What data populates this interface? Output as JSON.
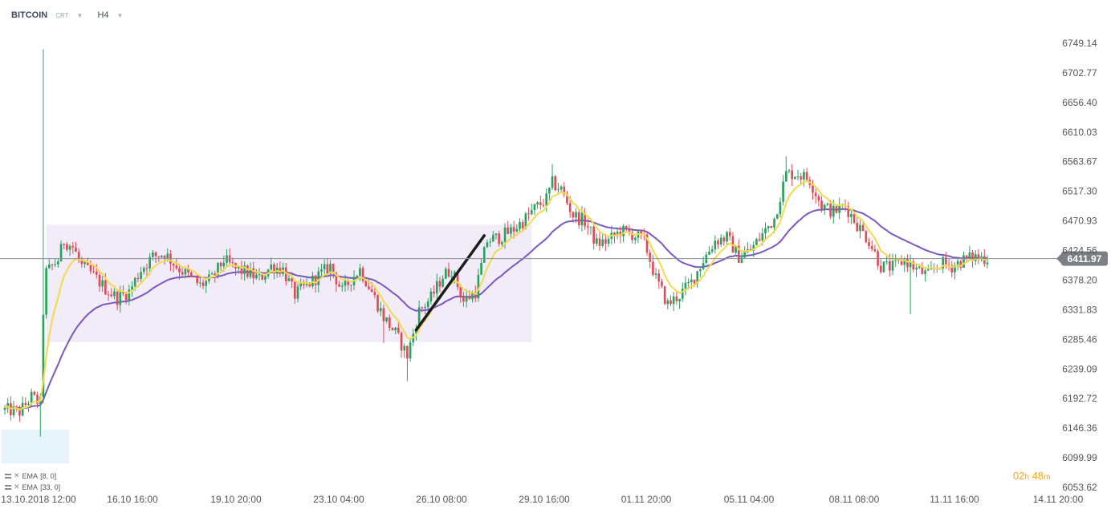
{
  "header": {
    "symbol": "BITCOIN",
    "type": "CRT",
    "timeframe": "H4"
  },
  "indicators": [
    {
      "label": "EMA",
      "params": "[8, 0]",
      "color": "#f2d94e"
    },
    {
      "label": "EMA",
      "params": "[33, 0]",
      "color": "#7b57c2"
    }
  ],
  "timer": {
    "hours": "02",
    "h": "h",
    "minutes": "48",
    "m": "m"
  },
  "chart_data": {
    "type": "candlestick",
    "symbol": "BITCOIN",
    "timeframe": "H4",
    "ylim": [
      6053.62,
      6749.14
    ],
    "y_ticks": [
      "6749.14",
      "6702.77",
      "6656.40",
      "6610.03",
      "6563.67",
      "6517.30",
      "6470.93",
      "6424.56",
      "6378.20",
      "6331.83",
      "6285.46",
      "6239.09",
      "6192.72",
      "6146.36",
      "6099.99",
      "6053.62"
    ],
    "x_ticks": [
      "13.10.2018 12:00",
      "16.10 16:00",
      "19.10 20:00",
      "23.10 04:00",
      "26.10 08:00",
      "29.10 16:00",
      "01.11 20:00",
      "05.11 04:00",
      "08.11 08:00",
      "11.11 16:00",
      "14.11 20:00"
    ],
    "last_price": "6411.97",
    "up_color": "#2aa160",
    "down_color": "#e04b5a",
    "ema_fast_color": "#f2d94e",
    "ema_slow_color": "#7b57c2",
    "range_box": {
      "y_top": 6465,
      "y_bottom": 6281,
      "x_start_index": 14,
      "x_end_index": 178
    },
    "trendline": {
      "from": {
        "index": 139,
        "price": 6300
      },
      "to": {
        "index": 162,
        "price": 6448
      }
    },
    "price_path": [
      [
        0,
        6175
      ],
      [
        5,
        6172
      ],
      [
        9,
        6195
      ],
      [
        12,
        6185
      ],
      [
        13,
        6330
      ],
      [
        14,
        6390
      ],
      [
        16,
        6400
      ],
      [
        18,
        6410
      ],
      [
        20,
        6440
      ],
      [
        23,
        6430
      ],
      [
        26,
        6400
      ],
      [
        30,
        6385
      ],
      [
        34,
        6365
      ],
      [
        38,
        6350
      ],
      [
        42,
        6360
      ],
      [
        46,
        6395
      ],
      [
        50,
        6415
      ],
      [
        54,
        6420
      ],
      [
        58,
        6400
      ],
      [
        62,
        6385
      ],
      [
        66,
        6370
      ],
      [
        70,
        6380
      ],
      [
        74,
        6410
      ],
      [
        78,
        6395
      ],
      [
        82,
        6390
      ],
      [
        86,
        6380
      ],
      [
        90,
        6400
      ],
      [
        94,
        6395
      ],
      [
        98,
        6355
      ],
      [
        102,
        6370
      ],
      [
        106,
        6385
      ],
      [
        110,
        6400
      ],
      [
        114,
        6360
      ],
      [
        117,
        6380
      ],
      [
        120,
        6395
      ],
      [
        124,
        6360
      ],
      [
        128,
        6320
      ],
      [
        132,
        6295
      ],
      [
        136,
        6260
      ],
      [
        140,
        6330
      ],
      [
        144,
        6350
      ],
      [
        148,
        6385
      ],
      [
        151,
        6395
      ],
      [
        155,
        6345
      ],
      [
        159,
        6360
      ],
      [
        163,
        6440
      ],
      [
        167,
        6445
      ],
      [
        171,
        6455
      ],
      [
        175,
        6470
      ],
      [
        179,
        6490
      ],
      [
        183,
        6505
      ],
      [
        185,
        6530
      ],
      [
        188,
        6520
      ],
      [
        192,
        6480
      ],
      [
        196,
        6470
      ],
      [
        200,
        6435
      ],
      [
        204,
        6440
      ],
      [
        208,
        6455
      ],
      [
        212,
        6450
      ],
      [
        216,
        6440
      ],
      [
        220,
        6380
      ],
      [
        224,
        6340
      ],
      [
        228,
        6355
      ],
      [
        232,
        6375
      ],
      [
        236,
        6410
      ],
      [
        240,
        6440
      ],
      [
        244,
        6445
      ],
      [
        248,
        6415
      ],
      [
        252,
        6425
      ],
      [
        256,
        6450
      ],
      [
        260,
        6475
      ],
      [
        264,
        6545
      ],
      [
        268,
        6545
      ],
      [
        272,
        6535
      ],
      [
        276,
        6495
      ],
      [
        280,
        6485
      ],
      [
        284,
        6495
      ],
      [
        288,
        6465
      ],
      [
        292,
        6440
      ],
      [
        296,
        6400
      ],
      [
        300,
        6398
      ],
      [
        304,
        6410
      ],
      [
        308,
        6395
      ],
      [
        312,
        6385
      ],
      [
        316,
        6405
      ],
      [
        320,
        6400
      ],
      [
        324,
        6410
      ],
      [
        328,
        6415
      ],
      [
        332,
        6412
      ]
    ]
  }
}
